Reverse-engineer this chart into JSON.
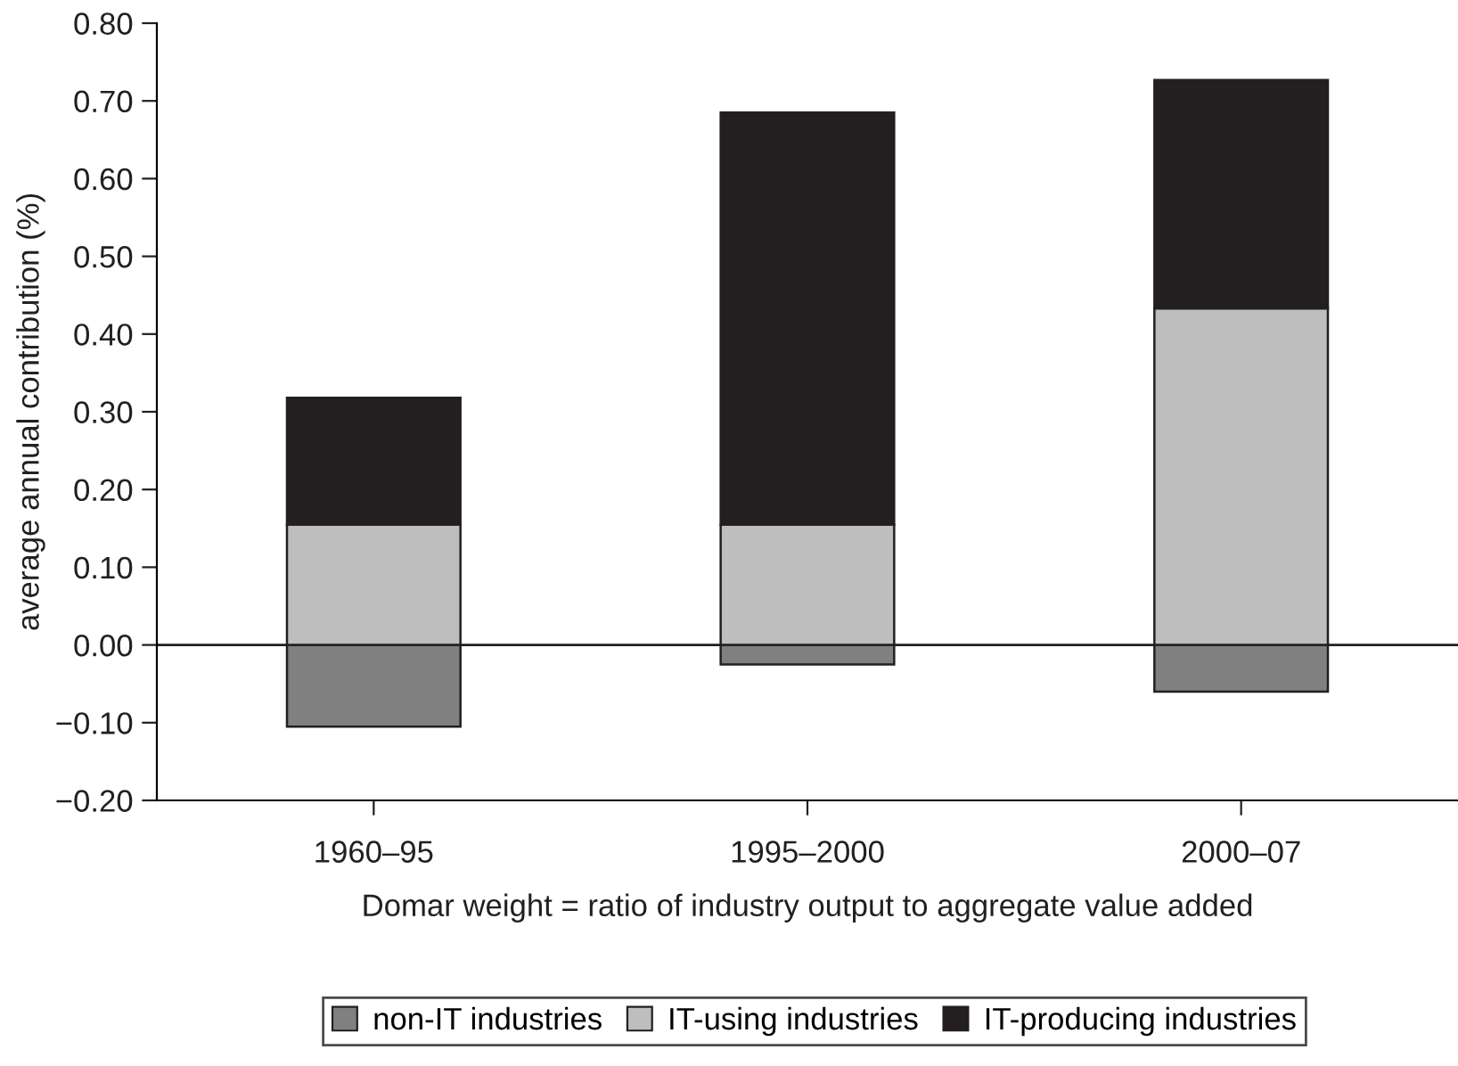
{
  "chart_data": {
    "type": "bar",
    "stacked": true,
    "xlabel": "Domar weight = ratio of industry output to aggregate value added",
    "ylabel": "average annual contribution (%)",
    "categories": [
      "1960–95",
      "1995–2000",
      "2000–07"
    ],
    "series": [
      {
        "name": "non-IT industries",
        "color": "#808080",
        "values": [
          -0.105,
          -0.025,
          -0.06
        ]
      },
      {
        "name": "IT-using industries",
        "color": "#bebebe",
        "values": [
          0.155,
          0.155,
          0.433
        ]
      },
      {
        "name": "IT-producing industries",
        "color": "#231f20",
        "values": [
          0.163,
          0.53,
          0.294
        ]
      }
    ],
    "ylim": [
      -0.2,
      0.8
    ],
    "yticks": [
      {
        "value": -0.2,
        "label": "−0.20"
      },
      {
        "value": -0.1,
        "label": "−0.10"
      },
      {
        "value": 0,
        "label": "0.00"
      },
      {
        "value": 0.1,
        "label": "0.10"
      },
      {
        "value": 0.2,
        "label": "0.20"
      },
      {
        "value": 0.3,
        "label": "0.30"
      },
      {
        "value": 0.4,
        "label": "0.40"
      },
      {
        "value": 0.5,
        "label": "0.50"
      },
      {
        "value": 0.6,
        "label": "0.60"
      },
      {
        "value": 0.7,
        "label": "0.70"
      },
      {
        "value": 0.8,
        "label": "0.80"
      }
    ],
    "ref_lines": [
      {
        "axis": "y",
        "value": 0,
        "color": "#231f20"
      }
    ],
    "grid": false,
    "legend": "bottom"
  }
}
